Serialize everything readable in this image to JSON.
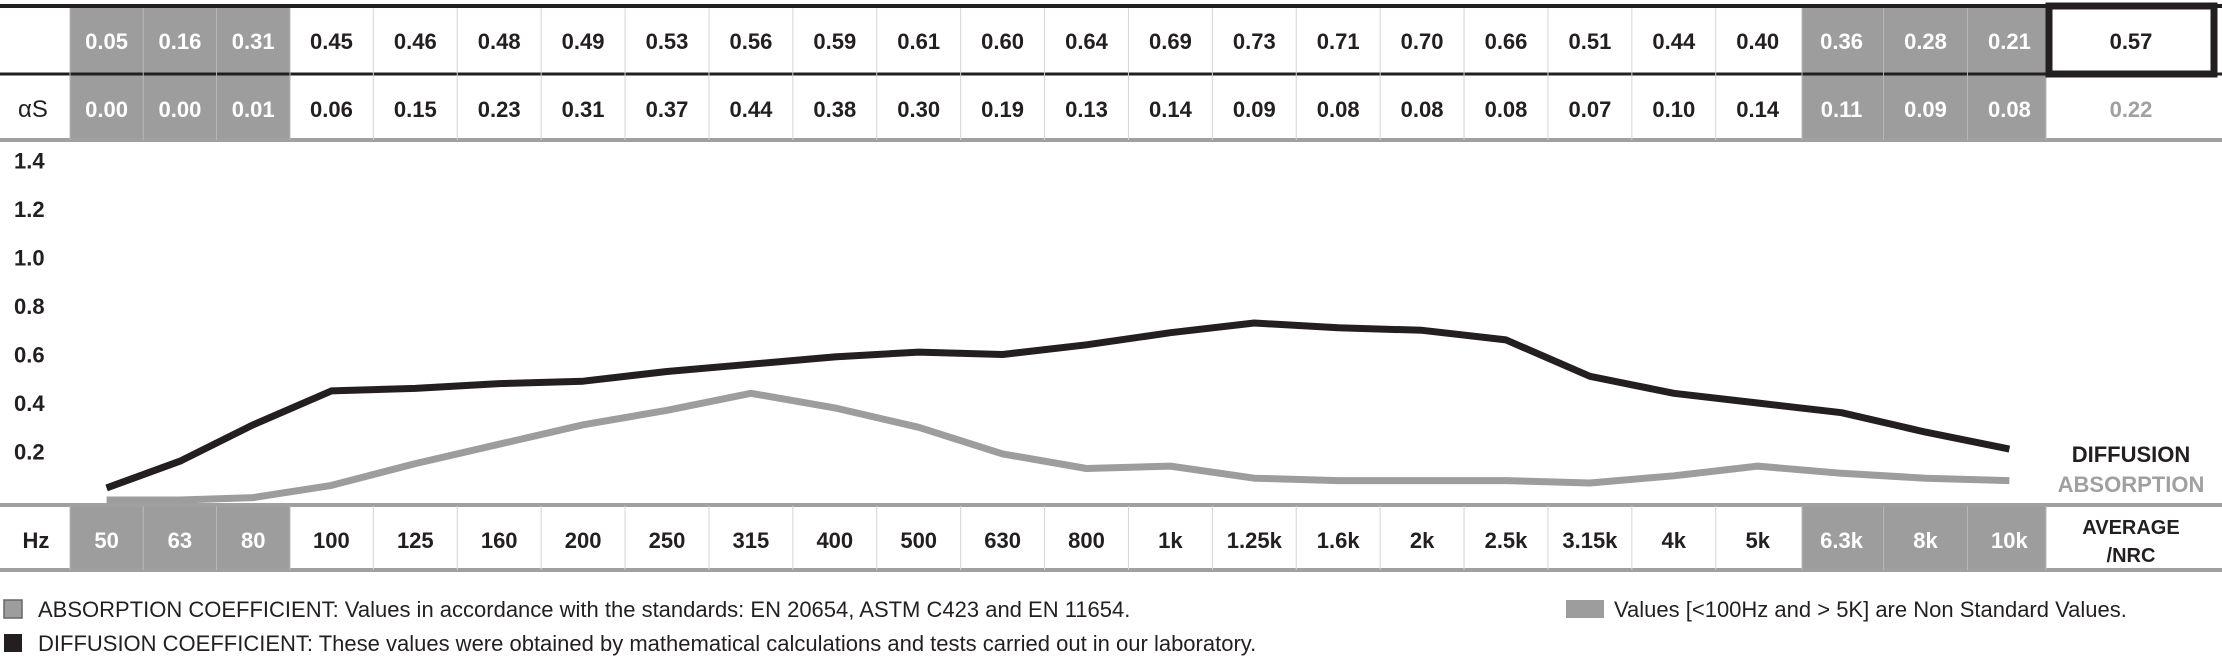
{
  "chart_data": {
    "type": "line",
    "frequencies": [
      "50",
      "63",
      "80",
      "100",
      "125",
      "160",
      "200",
      "250",
      "315",
      "400",
      "500",
      "630",
      "800",
      "1k",
      "1.25k",
      "1.6k",
      "2k",
      "2.5k",
      "3.15k",
      "4k",
      "5k",
      "6.3k",
      "8k",
      "10k"
    ],
    "non_standard": [
      true,
      true,
      true,
      false,
      false,
      false,
      false,
      false,
      false,
      false,
      false,
      false,
      false,
      false,
      false,
      false,
      false,
      false,
      false,
      false,
      false,
      true,
      true,
      true
    ],
    "diffusion": {
      "values": [
        0.05,
        0.16,
        0.31,
        0.45,
        0.46,
        0.48,
        0.49,
        0.53,
        0.56,
        0.59,
        0.61,
        0.6,
        0.64,
        0.69,
        0.73,
        0.71,
        0.7,
        0.66,
        0.51,
        0.44,
        0.4,
        0.36,
        0.28,
        0.21
      ],
      "display": [
        "0.05",
        "0.16",
        "0.31",
        "0.45",
        "0.46",
        "0.48",
        "0.49",
        "0.53",
        "0.56",
        "0.59",
        "0.61",
        "0.60",
        "0.64",
        "0.69",
        "0.73",
        "0.71",
        "0.70",
        "0.66",
        "0.51",
        "0.44",
        "0.40",
        "0.36",
        "0.28",
        "0.21"
      ],
      "average": "0.57",
      "legend_label": "DIFFUSION",
      "color": "#231f20"
    },
    "absorption": {
      "row_label": "αS",
      "values": [
        0.0,
        0.0,
        0.01,
        0.06,
        0.15,
        0.23,
        0.31,
        0.37,
        0.44,
        0.38,
        0.3,
        0.19,
        0.13,
        0.14,
        0.09,
        0.08,
        0.08,
        0.08,
        0.07,
        0.1,
        0.14,
        0.11,
        0.09,
        0.08
      ],
      "display": [
        "0.00",
        "0.00",
        "0.01",
        "0.06",
        "0.15",
        "0.23",
        "0.31",
        "0.37",
        "0.44",
        "0.38",
        "0.30",
        "0.19",
        "0.13",
        "0.14",
        "0.09",
        "0.08",
        "0.08",
        "0.08",
        "0.07",
        "0.10",
        "0.14",
        "0.11",
        "0.09",
        "0.08"
      ],
      "nrc": "0.22",
      "legend_label": "ABSORPTION",
      "color": "#9d9d9d"
    },
    "y_ticks": [
      "1.4",
      "1.2",
      "1.0",
      "0.8",
      "0.6",
      "0.4",
      "0.2"
    ],
    "y_tick_values": [
      1.4,
      1.2,
      1.0,
      0.8,
      0.6,
      0.4,
      0.2
    ],
    "ylim": [
      0,
      1.4
    ],
    "x_axis_label": "Hz",
    "average_label_line1": "AVERAGE",
    "average_label_line2": "/NRC",
    "grid": false,
    "legend_position": "right"
  },
  "notes": {
    "absorption": "ABSORPTION COEFFICIENT: Values in accordance with the standards: EN 20654, ASTM C423 and EN 11654.",
    "diffusion": "DIFFUSION COEFFICIENT: These values were obtained by mathematical calculations and tests carried out in our laboratory.",
    "non_standard": "Values [<100Hz and > 5K] are Non Standard Values."
  },
  "colors": {
    "dark": "#231f20",
    "grey_band": "#9d9d9d",
    "light_text": "#a0a0a0"
  }
}
